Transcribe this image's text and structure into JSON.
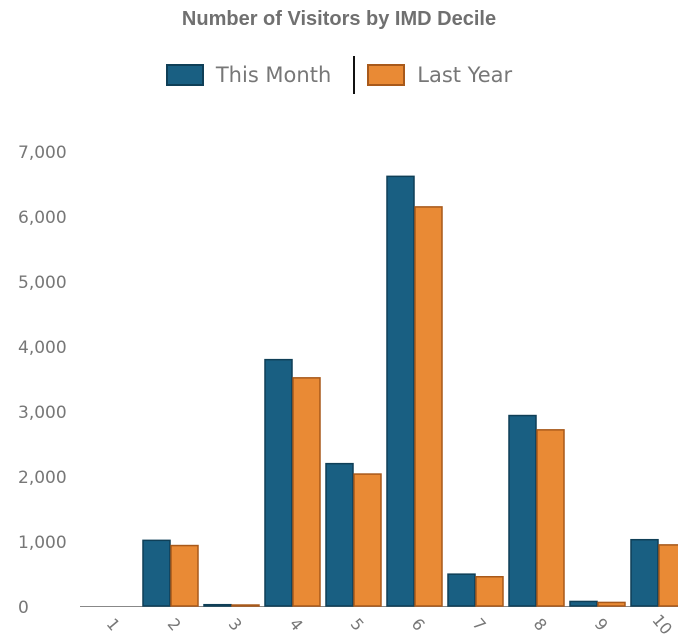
{
  "chart_data": {
    "type": "bar",
    "title": "Number of Visitors by IMD Decile",
    "xlabel": "",
    "ylabel": "",
    "categories": [
      "1",
      "2",
      "3",
      "4",
      "5",
      "6",
      "7",
      "8",
      "9",
      "10"
    ],
    "series": [
      {
        "name": "This Month",
        "values": [
          0,
          1010,
          20,
          3790,
          2190,
          6610,
          490,
          2930,
          70,
          1020
        ],
        "color": "#195f82",
        "border": "#0f3f57"
      },
      {
        "name": "Last Year",
        "values": [
          0,
          930,
          15,
          3510,
          2030,
          6140,
          450,
          2710,
          55,
          940
        ],
        "color": "#e98a35",
        "border": "#a8591a"
      }
    ],
    "ylim": [
      0,
      7000
    ],
    "yticks": [
      0,
      1000,
      2000,
      3000,
      4000,
      5000,
      6000,
      7000
    ],
    "ytick_labels": [
      "0",
      "1,000",
      "2,000",
      "3,000",
      "4,000",
      "5,000",
      "6,000",
      "7,000"
    ],
    "grid": false,
    "legend_position": "top-center"
  }
}
